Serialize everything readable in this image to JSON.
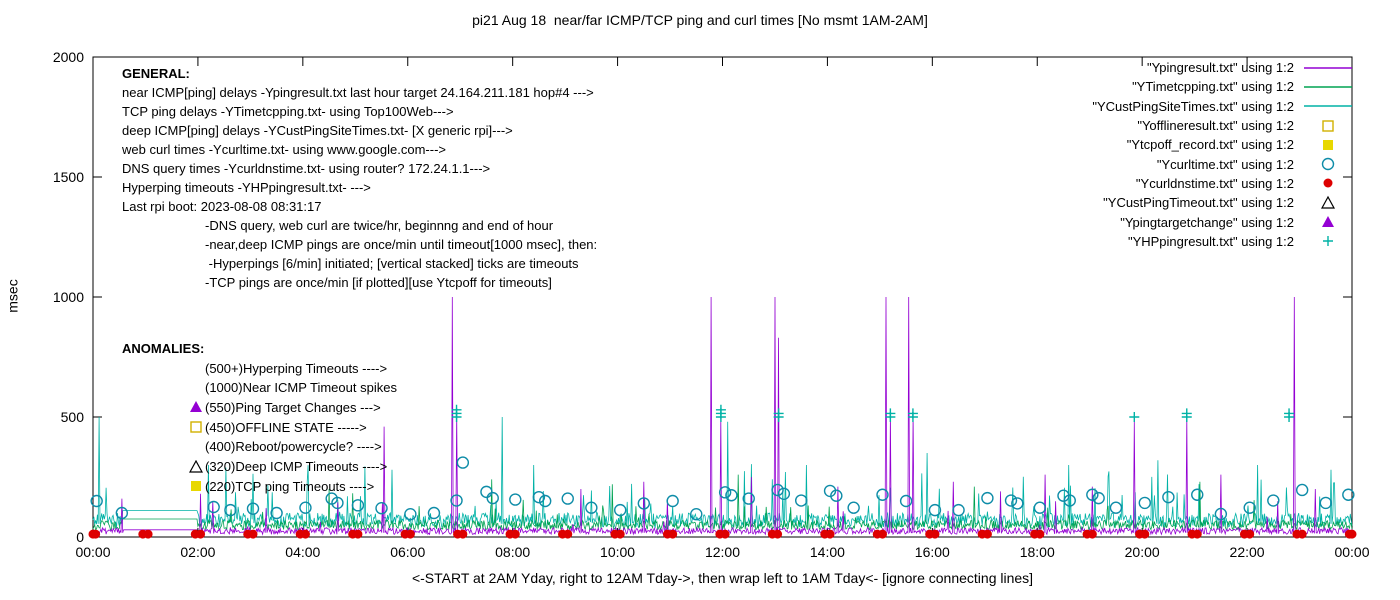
{
  "chart_data": {
    "type": "line",
    "title": "pi21 Aug 18  near/far ICMP/TCP ping and curl times [No msmt 1AM-2AM]",
    "ylabel": "msec",
    "xlabel": "<-START at 2AM Yday, right to 12AM Tday->, then wrap left to 1AM Tday<- [ignore connecting lines]",
    "ylim": [
      0,
      2000
    ],
    "yticks": [
      0,
      500,
      1000,
      1500,
      2000
    ],
    "hours_span": 24,
    "xtick_labels": [
      "00:00",
      "02:00",
      "04:00",
      "06:00",
      "08:00",
      "10:00",
      "12:00",
      "14:00",
      "16:00",
      "18:00",
      "20:00",
      "22:00",
      "00:00"
    ],
    "grid": false,
    "legend_position": "top-right",
    "line_series": [
      {
        "name": "\"Ypingresult.txt\" using 1:2",
        "color": "#9400d3",
        "baseline_msec": 18,
        "noise_msec": 28,
        "burst_probability": 0.02,
        "burst_amp_msec": 150,
        "gap_hold_msec": 30,
        "seed": 11,
        "spikes": [
          [
            0.55,
            160
          ],
          [
            2.05,
            180
          ],
          [
            3.3,
            120
          ],
          [
            5.55,
            460
          ],
          [
            6.85,
            1000
          ],
          [
            6.93,
            510
          ],
          [
            9.3,
            200
          ],
          [
            10.5,
            230
          ],
          [
            11.78,
            1000
          ],
          [
            11.97,
            500
          ],
          [
            12.55,
            250
          ],
          [
            13.0,
            1000
          ],
          [
            13.07,
            830
          ],
          [
            14.2,
            210
          ],
          [
            15.12,
            1000
          ],
          [
            15.2,
            510
          ],
          [
            15.55,
            1000
          ],
          [
            15.63,
            510
          ],
          [
            16.4,
            230
          ],
          [
            17.3,
            190
          ],
          [
            18.15,
            260
          ],
          [
            19.05,
            210
          ],
          [
            19.85,
            480
          ],
          [
            20.85,
            500
          ],
          [
            21.5,
            260
          ],
          [
            22.9,
            1000
          ],
          [
            23.3,
            200
          ]
        ]
      },
      {
        "name": "\"YTimetcpping.txt\" using 1:2",
        "color": "#00a352",
        "baseline_msec": 40,
        "noise_msec": 40,
        "burst_probability": 0.02,
        "burst_amp_msec": 120,
        "gap_hold_msec": 75,
        "seed": 23,
        "spikes": [
          [
            4.5,
            200
          ],
          [
            7.6,
            240
          ],
          [
            9.9,
            220
          ],
          [
            12.3,
            260
          ],
          [
            16.8,
            210
          ],
          [
            21.1,
            230
          ]
        ]
      },
      {
        "name": "\"YCustPingSiteTimes.txt\" using 1:2",
        "color": "#00b2a6",
        "baseline_msec": 55,
        "noise_msec": 60,
        "burst_probability": 0.05,
        "burst_amp_msec": 220,
        "gap_hold_msec": 110,
        "seed": 37,
        "spikes": [
          [
            0.12,
            500
          ],
          [
            2.2,
            300
          ],
          [
            5.7,
            280
          ],
          [
            7.8,
            500
          ],
          [
            8.4,
            300
          ],
          [
            12.1,
            480
          ],
          [
            13.6,
            300
          ],
          [
            15.9,
            350
          ],
          [
            18.6,
            300
          ],
          [
            20.3,
            320
          ],
          [
            22.2,
            300
          ],
          [
            23.6,
            280
          ]
        ]
      }
    ],
    "marker_series": [
      {
        "name": "\"Yofflineresult.txt\" using 1:2",
        "shape": "square-open",
        "color": "#d1b000",
        "points": []
      },
      {
        "name": "\"Ytcpoff_record.txt\" using 1:2",
        "shape": "square-filled",
        "color": "#e8d800",
        "points": []
      },
      {
        "name": "\"Ycurltime.txt\" using 1:2",
        "shape": "circle-open",
        "color": "#0e8ca8",
        "points": [
          [
            0.07,
            150
          ],
          [
            0.55,
            100
          ],
          [
            2.3,
            125
          ],
          [
            2.62,
            112
          ],
          [
            3.05,
            118
          ],
          [
            3.5,
            100
          ],
          [
            4.05,
            122
          ],
          [
            4.55,
            160
          ],
          [
            4.66,
            142
          ],
          [
            5.05,
            132
          ],
          [
            5.5,
            120
          ],
          [
            6.05,
            95
          ],
          [
            6.5,
            100
          ],
          [
            6.93,
            152
          ],
          [
            7.05,
            310
          ],
          [
            7.5,
            188
          ],
          [
            7.62,
            162
          ],
          [
            8.05,
            156
          ],
          [
            8.5,
            166
          ],
          [
            8.62,
            150
          ],
          [
            9.05,
            160
          ],
          [
            9.5,
            122
          ],
          [
            10.05,
            112
          ],
          [
            10.5,
            140
          ],
          [
            11.05,
            150
          ],
          [
            11.5,
            95
          ],
          [
            12.05,
            186
          ],
          [
            12.17,
            174
          ],
          [
            12.5,
            160
          ],
          [
            13.05,
            196
          ],
          [
            13.17,
            180
          ],
          [
            13.5,
            152
          ],
          [
            14.05,
            192
          ],
          [
            14.17,
            172
          ],
          [
            14.5,
            122
          ],
          [
            15.05,
            176
          ],
          [
            15.5,
            150
          ],
          [
            16.05,
            112
          ],
          [
            16.5,
            112
          ],
          [
            17.05,
            162
          ],
          [
            17.5,
            152
          ],
          [
            17.62,
            140
          ],
          [
            18.05,
            122
          ],
          [
            18.5,
            172
          ],
          [
            18.62,
            152
          ],
          [
            19.05,
            176
          ],
          [
            19.17,
            162
          ],
          [
            19.5,
            122
          ],
          [
            20.05,
            142
          ],
          [
            20.5,
            166
          ],
          [
            21.05,
            176
          ],
          [
            21.5,
            96
          ],
          [
            22.05,
            122
          ],
          [
            22.5,
            152
          ],
          [
            23.05,
            196
          ],
          [
            23.5,
            142
          ],
          [
            23.93,
            176
          ]
        ]
      },
      {
        "name": "\"Ycurldnstime.txt\" using 1:2",
        "shape": "circle-filled",
        "color": "#dd0000",
        "points": [],
        "points_hourly": {
          "start": 0,
          "end": 24,
          "value_msec": 12,
          "offset_h": 0.05
        }
      },
      {
        "name": "\"YCustPingTimeout.txt\" using 1:2",
        "shape": "triangle-open",
        "color": "#000000",
        "points": []
      },
      {
        "name": "\"Ypingtargetchange\" using 1:2",
        "shape": "triangle-filled",
        "color": "#9400d3",
        "points": []
      },
      {
        "name": "\"YHPpingresult.txt\" using 1:2",
        "shape": "plus",
        "color": "#00b2a6",
        "points": [
          [
            6.93,
            500
          ],
          [
            6.93,
            515
          ],
          [
            6.93,
            530
          ],
          [
            11.97,
            500
          ],
          [
            11.97,
            515
          ],
          [
            11.97,
            530
          ],
          [
            13.07,
            500
          ],
          [
            13.07,
            515
          ],
          [
            15.2,
            500
          ],
          [
            15.2,
            515
          ],
          [
            15.63,
            500
          ],
          [
            15.63,
            515
          ],
          [
            19.85,
            500
          ],
          [
            20.85,
            500
          ],
          [
            20.85,
            515
          ],
          [
            22.8,
            500
          ],
          [
            22.8,
            515
          ]
        ]
      }
    ]
  },
  "annotations": {
    "general": {
      "heading": "GENERAL:",
      "lines": [
        "near ICMP[ping] delays -Ypingresult.txt last hour target 24.164.211.181 hop#4 --->",
        "TCP ping delays -YTimetcpping.txt- using Top100Web--->",
        "deep ICMP[ping] delays -YCustPingSiteTimes.txt- [X generic rpi]--->",
        "web curl times -Ycurltime.txt- using www.google.com--->",
        "DNS query times -Ycurldnstime.txt- using router? 172.24.1.1--->",
        "Hyperping timeouts -YHPpingresult.txt- --->",
        "Last rpi boot: 2023-08-08 08:31:17"
      ],
      "notes": [
        "-DNS query, web curl are twice/hr, beginnng and end of hour",
        "-near,deep ICMP pings are once/min until timeout[1000 msec], then:",
        " -Hyperpings [6/min] initiated; [vertical stacked] ticks are timeouts",
        "-TCP pings are once/min [if plotted][use Ytcpoff for timeouts]"
      ]
    },
    "anomalies": {
      "heading": "ANOMALIES:",
      "lines": [
        {
          "text": "(500+)Hyperping Timeouts ---->"
        },
        {
          "text": "(1000)Near ICMP Timeout spikes"
        },
        {
          "text": "(550)Ping Target Changes --->",
          "marker": {
            "shape": "triangle-filled",
            "color": "#9400d3"
          }
        },
        {
          "text": "(450)OFFLINE STATE ----->",
          "marker": {
            "shape": "square-open",
            "color": "#d1b000"
          }
        },
        {
          "text": "(400)Reboot/powercycle? ---->"
        },
        {
          "text": "(320)Deep ICMP Timeouts ---->",
          "marker": {
            "shape": "triangle-open",
            "color": "#000000"
          }
        },
        {
          "text": "(220)TCP ping Timeouts ---->",
          "marker": {
            "shape": "square-filled",
            "color": "#e8d800"
          }
        }
      ]
    }
  }
}
